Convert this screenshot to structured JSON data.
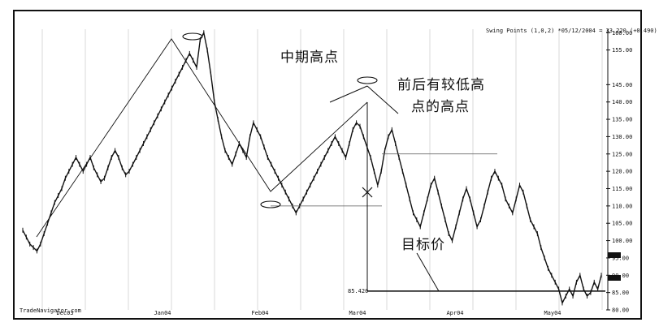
{
  "chart_data": {
    "type": "line",
    "title": "",
    "header": "Swing Points (1,0,2)  *05/12/2004 = 33.220 (+0.490)",
    "watermark": "TradeNavigator.com",
    "y_ticks": [
      "160.00",
      "155.00",
      "145.00",
      "140.00",
      "135.00",
      "130.00",
      "125.00",
      "120.00",
      "115.00",
      "110.00",
      "105.00",
      "100.00",
      "95.00",
      "90.00",
      "85.00",
      "80.00"
    ],
    "x_ticks": [
      "Dec03",
      "Jan04",
      "Feb04",
      "Mar04",
      "Apr04",
      "May04"
    ],
    "ylim": [
      80,
      161
    ],
    "grid": true,
    "target_price_label": "85.420",
    "target_price": 85.42,
    "neckline_value": 110.0,
    "swing_high_level": 125.0,
    "series": [
      {
        "values": [
          103,
          101,
          99,
          98,
          97,
          99,
          102,
          105,
          108,
          111,
          113,
          115,
          118,
          120,
          122,
          124,
          122,
          120,
          122,
          124,
          121,
          119,
          117,
          118,
          121,
          124,
          126,
          124,
          121,
          119,
          120,
          122,
          124,
          126,
          128,
          130,
          132,
          134,
          136,
          138,
          140,
          142,
          144,
          146,
          148,
          150,
          152,
          154,
          152,
          150,
          158,
          160,
          155,
          148,
          140,
          135,
          130,
          126,
          124,
          122,
          125,
          128,
          126,
          124,
          130,
          134,
          132,
          130,
          127,
          124,
          122,
          120,
          118,
          116,
          114,
          112,
          110,
          108,
          110,
          112,
          114,
          116,
          118,
          120,
          122,
          124,
          126,
          128,
          130,
          128,
          126,
          124,
          128,
          132,
          134,
          133,
          130,
          127,
          124,
          120,
          116,
          120,
          126,
          130,
          132,
          128,
          124,
          120,
          116,
          112,
          108,
          106,
          104,
          108,
          112,
          116,
          118,
          114,
          110,
          106,
          102,
          100,
          104,
          108,
          112,
          115,
          112,
          108,
          104,
          106,
          110,
          114,
          118,
          120,
          118,
          116,
          112,
          110,
          108,
          112,
          116,
          114,
          110,
          106,
          104,
          102,
          98,
          95,
          92,
          90,
          88,
          86,
          82,
          84,
          86,
          84,
          88,
          90,
          86,
          84,
          85,
          88,
          86,
          90
        ]
      }
    ],
    "annotations": [
      {
        "key": "mid_high",
        "text": "中期高点"
      },
      {
        "key": "lower_highs",
        "text_line1": "前后有较低高",
        "text_line2": "点的高点"
      },
      {
        "key": "target",
        "text": "目标价"
      }
    ]
  },
  "labels": {
    "mid_high": "中期高点",
    "lower_highs_1": "前后有较低高",
    "lower_highs_2": "点的高点",
    "target": "目标价"
  }
}
